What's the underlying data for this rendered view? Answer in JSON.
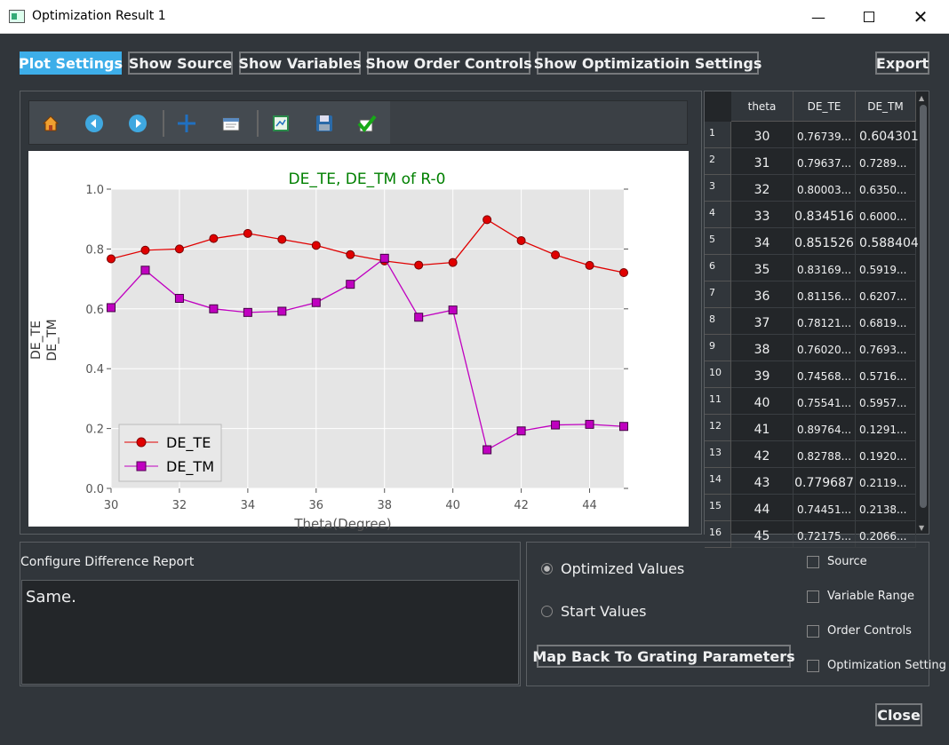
{
  "window": {
    "title": "Optimization Result 1"
  },
  "toolbar_buttons": {
    "plot_settings": "Plot Settings",
    "show_source": "Show Source",
    "show_variables": "Show Variables",
    "show_order_controls": "Show Order Controls",
    "show_optimization_settings": "Show Optimizatioin Settings",
    "export": "Export"
  },
  "plot_toolbar_icons": [
    "home-icon",
    "back-icon",
    "forward-icon",
    "pan-icon",
    "zoom-icon",
    "subplots-icon",
    "save-icon",
    "check-icon"
  ],
  "chart_data": {
    "type": "line",
    "title": "DE_TE, DE_TM of R-0",
    "xlabel": "Theta(Degree)",
    "ylabel_lines": [
      "DE_TE",
      "DE_TM"
    ],
    "xlim": [
      30,
      45
    ],
    "ylim": [
      0.0,
      1.0
    ],
    "xticks": [
      "30",
      "32",
      "34",
      "36",
      "38",
      "40",
      "42",
      "44"
    ],
    "yticks": [
      "0.0",
      "0.2",
      "0.4",
      "0.6",
      "0.8",
      "1.0"
    ],
    "grid": true,
    "legend_position": "lower-left",
    "x": [
      30,
      31,
      32,
      33,
      34,
      35,
      36,
      37,
      38,
      39,
      40,
      41,
      42,
      43,
      44,
      45
    ],
    "series": [
      {
        "name": "DE_TE",
        "color": "#e00000",
        "marker": "circle",
        "values": [
          0.767,
          0.796,
          0.8,
          0.835,
          0.852,
          0.832,
          0.812,
          0.781,
          0.76,
          0.746,
          0.755,
          0.898,
          0.828,
          0.78,
          0.745,
          0.721
        ]
      },
      {
        "name": "DE_TM",
        "color": "#c000c0",
        "marker": "square",
        "values": [
          0.604,
          0.729,
          0.635,
          0.6,
          0.588,
          0.592,
          0.621,
          0.682,
          0.769,
          0.572,
          0.596,
          0.129,
          0.192,
          0.212,
          0.214,
          0.207
        ]
      }
    ]
  },
  "table": {
    "columns": [
      "theta",
      "DE_TE",
      "DE_TM"
    ],
    "rows": [
      {
        "n": "1",
        "theta": "30",
        "te": "0.76739...",
        "tm": "0.604301"
      },
      {
        "n": "2",
        "theta": "31",
        "te": "0.79637...",
        "tm": "0.7289..."
      },
      {
        "n": "3",
        "theta": "32",
        "te": "0.80003...",
        "tm": "0.6350..."
      },
      {
        "n": "4",
        "theta": "33",
        "te": "0.834516",
        "tm": "0.6000..."
      },
      {
        "n": "5",
        "theta": "34",
        "te": "0.851526",
        "tm": "0.588404"
      },
      {
        "n": "6",
        "theta": "35",
        "te": "0.83169...",
        "tm": "0.5919..."
      },
      {
        "n": "7",
        "theta": "36",
        "te": "0.81156...",
        "tm": "0.6207..."
      },
      {
        "n": "8",
        "theta": "37",
        "te": "0.78121...",
        "tm": "0.6819..."
      },
      {
        "n": "9",
        "theta": "38",
        "te": "0.76020...",
        "tm": "0.7693..."
      },
      {
        "n": "10",
        "theta": "39",
        "te": "0.74568...",
        "tm": "0.5716..."
      },
      {
        "n": "11",
        "theta": "40",
        "te": "0.75541...",
        "tm": "0.5957..."
      },
      {
        "n": "12",
        "theta": "41",
        "te": "0.89764...",
        "tm": "0.1291..."
      },
      {
        "n": "13",
        "theta": "42",
        "te": "0.82788...",
        "tm": "0.1920..."
      },
      {
        "n": "14",
        "theta": "43",
        "te": "0.779687",
        "tm": "0.2119..."
      },
      {
        "n": "15",
        "theta": "44",
        "te": "0.74451...",
        "tm": "0.2138..."
      },
      {
        "n": "16",
        "theta": "45",
        "te": "0.72175...",
        "tm": "0.2066..."
      }
    ]
  },
  "difference_report": {
    "label": "Configure Difference Report",
    "text": "Same."
  },
  "options": {
    "optimized_values": "Optimized Values",
    "start_values": "Start Values",
    "map_back": "Map Back To Grating Parameters",
    "source": "Source",
    "variable_range": "Variable Range",
    "order_controls": "Order Controls",
    "optimization_setting": "Optimization Setting"
  },
  "close_label": "Close"
}
